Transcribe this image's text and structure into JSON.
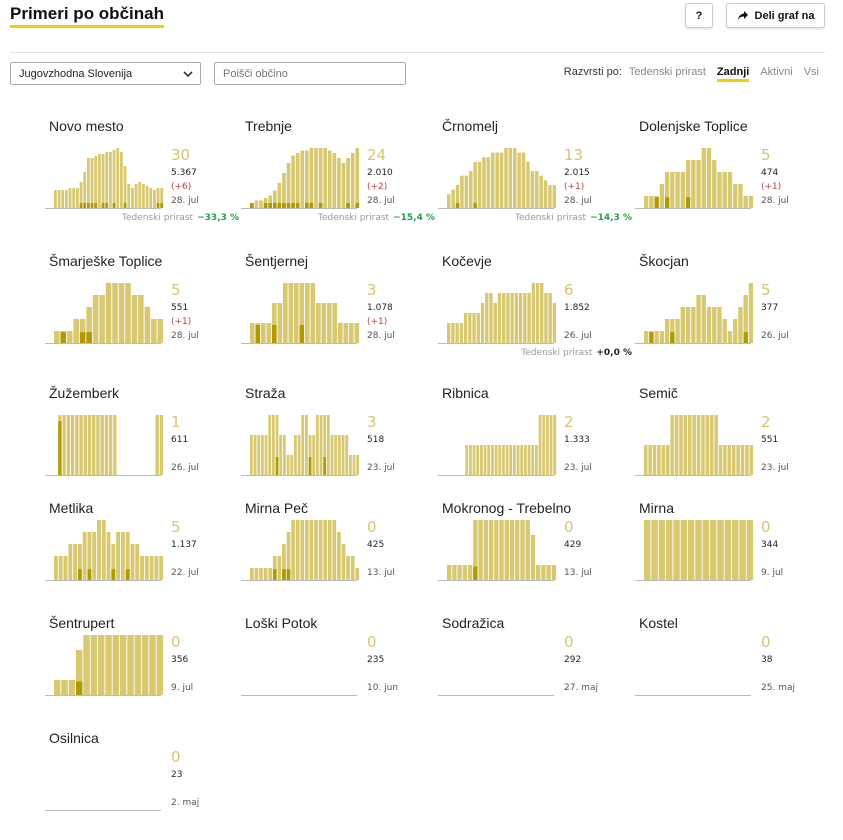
{
  "header": {
    "title": "Primeri po občinah",
    "help_label": "?",
    "share_label": "Deli graf na"
  },
  "controls": {
    "region_selected": "Jugovzhodna Slovenija",
    "search_placeholder": "Poišči občino",
    "sort_label": "Razvrsti po:",
    "sort_options": [
      "Tedenski prirast",
      "Zadnji",
      "Aktivni",
      "Vsi"
    ],
    "sort_active": "Zadnji"
  },
  "colors": {
    "bar_light": "#d8c870",
    "bar_dark": "#b09a00",
    "accent": "#f0d000",
    "big_number": "#d8c470",
    "delta": "#c04040",
    "growth_negative": "#2a9d4e",
    "growth_zero": "#222222"
  },
  "growth_label": "Tedenski prirast",
  "chart_data": [
    {
      "type": "bar",
      "name": "Novo mesto",
      "big": "30",
      "total": "5.367",
      "delta": "(+6)",
      "date": "28. jul",
      "growth": "−33,3 %",
      "active": [
        9,
        9,
        9,
        9,
        10,
        10,
        10,
        13,
        18,
        25,
        25,
        26,
        27,
        27,
        28,
        28,
        29,
        30,
        28,
        21,
        12,
        10,
        12,
        13,
        12,
        11,
        10,
        9,
        10,
        10
      ],
      "new": [
        0,
        0,
        0,
        0,
        0,
        0,
        0,
        1,
        1,
        2,
        1,
        1,
        0,
        1,
        1,
        0,
        1,
        0,
        0,
        1,
        0,
        0,
        0,
        0,
        0,
        0,
        0,
        0,
        1,
        1
      ]
    },
    {
      "type": "bar",
      "name": "Trebnje",
      "big": "24",
      "total": "2.010",
      "delta": "(+2)",
      "date": "28. jul",
      "growth": "−15,4 %",
      "active": [
        2,
        3,
        3,
        4,
        5,
        7,
        10,
        14,
        18,
        21,
        22,
        23,
        23,
        24,
        24,
        24,
        24,
        23,
        22,
        20,
        18,
        20,
        22,
        24
      ],
      "new": [
        1,
        0,
        0,
        1,
        1,
        1,
        2,
        1,
        2,
        1,
        1,
        0,
        1,
        1,
        0,
        1,
        0,
        0,
        0,
        0,
        0,
        1,
        0,
        1
      ]
    },
    {
      "type": "bar",
      "name": "Črnomelj",
      "big": "13",
      "total": "2.015",
      "delta": "(+1)",
      "date": "28. jul",
      "growth": "−14,3 %",
      "active": [
        3,
        4,
        5,
        7,
        7,
        8,
        10,
        10,
        11,
        11,
        12,
        12,
        12,
        13,
        13,
        13,
        12,
        12,
        10,
        8,
        8,
        7,
        6,
        5,
        5
      ],
      "new": [
        0,
        0,
        1,
        0,
        0,
        0,
        1,
        0,
        0,
        0,
        0,
        0,
        0,
        0,
        0,
        0,
        0,
        0,
        0,
        0,
        0,
        0,
        0,
        0,
        0
      ]
    },
    {
      "type": "bar",
      "name": "Dolenjske Toplice",
      "big": "5",
      "total": "474",
      "delta": "(+1)",
      "date": "28. jul",
      "growth": "",
      "active": [
        1,
        1,
        1,
        2,
        3,
        3,
        3,
        3,
        4,
        4,
        4,
        5,
        5,
        4,
        3,
        3,
        3,
        2,
        2,
        1,
        1
      ],
      "new": [
        0,
        0,
        1,
        0,
        1,
        0,
        0,
        0,
        1,
        0,
        0,
        0,
        0,
        0,
        0,
        0,
        0,
        0,
        0,
        0,
        0
      ]
    },
    {
      "type": "bar",
      "name": "Šmarješke Toplice",
      "big": "5",
      "total": "551",
      "delta": "(+1)",
      "date": "28. jul",
      "growth": "",
      "active": [
        1,
        1,
        1,
        2,
        2,
        3,
        4,
        4,
        5,
        5,
        5,
        5,
        4,
        4,
        3,
        2,
        2
      ],
      "new": [
        0,
        1,
        0,
        0,
        1,
        1,
        0,
        0,
        0,
        0,
        0,
        0,
        0,
        0,
        0,
        0,
        0
      ]
    },
    {
      "type": "bar",
      "name": "Šentjernej",
      "big": "3",
      "total": "1.078",
      "delta": "(+1)",
      "date": "28. jul",
      "growth": "",
      "active": [
        1,
        1,
        1,
        1,
        2,
        2,
        3,
        3,
        3,
        3,
        3,
        3,
        2,
        2,
        2,
        2,
        1,
        1,
        1,
        1
      ],
      "new": [
        0,
        1,
        0,
        0,
        1,
        0,
        0,
        0,
        0,
        1,
        0,
        0,
        0,
        0,
        0,
        0,
        0,
        0,
        0,
        0
      ]
    },
    {
      "type": "bar",
      "name": "Kočevje",
      "big": "6",
      "total": "1.852",
      "delta": "",
      "date": "26. jul",
      "growth": "+0,0 %",
      "active": [
        2,
        2,
        2,
        2,
        3,
        3,
        3,
        3,
        4,
        5,
        5,
        4,
        5,
        5,
        5,
        5,
        5,
        5,
        5,
        5,
        6,
        6,
        6,
        5,
        5,
        4
      ],
      "new": [
        0,
        0,
        0,
        0,
        0,
        0,
        0,
        0,
        0,
        0,
        0,
        0,
        0,
        0,
        0,
        0,
        0,
        0,
        0,
        0,
        0,
        0,
        0,
        0,
        0,
        0
      ]
    },
    {
      "type": "bar",
      "name": "Škocjan",
      "big": "5",
      "total": "377",
      "delta": "",
      "date": "26. jul",
      "growth": "",
      "active": [
        1,
        1,
        1,
        1,
        2,
        2,
        2,
        3,
        3,
        3,
        4,
        4,
        3,
        3,
        3,
        2,
        1,
        2,
        3,
        4,
        5
      ],
      "new": [
        0,
        1,
        0,
        0,
        0,
        1,
        0,
        0,
        0,
        0,
        0,
        0,
        0,
        0,
        0,
        0,
        0,
        0,
        0,
        1,
        0
      ]
    },
    {
      "type": "bar",
      "name": "Žužemberk",
      "big": "1",
      "total": "611",
      "delta": "",
      "date": "26. jul",
      "growth": "",
      "active": [
        0,
        1,
        1,
        1,
        1,
        1,
        1,
        1,
        1,
        1,
        1,
        1,
        1,
        1,
        1,
        0,
        0,
        0,
        0,
        0,
        0,
        0,
        0,
        0,
        1,
        1
      ],
      "new": [
        0,
        1,
        0,
        0,
        0,
        0,
        0,
        0,
        0,
        0,
        0,
        0,
        0,
        0,
        0,
        0,
        0,
        0,
        0,
        0,
        0,
        0,
        0,
        0,
        0,
        0
      ]
    },
    {
      "type": "bar",
      "name": "Straža",
      "big": "3",
      "total": "518",
      "delta": "",
      "date": "23. jul",
      "growth": "",
      "active": [
        2,
        2,
        2,
        2,
        2,
        3,
        3,
        3,
        2,
        2,
        1,
        1,
        2,
        2,
        3,
        3,
        2,
        2,
        3,
        3,
        3,
        3,
        2,
        2,
        2,
        2,
        2,
        1,
        1,
        1
      ],
      "new": [
        0,
        0,
        0,
        0,
        0,
        0,
        0,
        1,
        0,
        0,
        0,
        0,
        0,
        0,
        0,
        0,
        1,
        0,
        0,
        0,
        1,
        0,
        0,
        0,
        0,
        0,
        0,
        0,
        0,
        0
      ]
    },
    {
      "type": "bar",
      "name": "Ribnica",
      "big": "2",
      "total": "1.333",
      "delta": "",
      "date": "23. jul",
      "growth": "",
      "active": [
        0,
        0,
        0,
        0,
        0,
        1,
        1,
        1,
        1,
        1,
        1,
        1,
        1,
        1,
        1,
        1,
        1,
        1,
        1,
        1,
        1,
        1,
        1,
        1,
        1,
        2,
        2,
        2,
        2,
        2
      ],
      "new": [
        0,
        0,
        0,
        0,
        0,
        0,
        0,
        0,
        0,
        0,
        0,
        0,
        0,
        0,
        0,
        0,
        0,
        0,
        0,
        0,
        0,
        0,
        0,
        0,
        0,
        0,
        0,
        0,
        0,
        0
      ]
    },
    {
      "type": "bar",
      "name": "Semič",
      "big": "2",
      "total": "551",
      "delta": "",
      "date": "23. jul",
      "growth": "",
      "active": [
        1,
        1,
        1,
        1,
        1,
        1,
        2,
        2,
        2,
        2,
        2,
        2,
        2,
        2,
        2,
        2,
        2,
        1,
        1,
        1,
        1,
        1,
        1,
        1,
        1
      ],
      "new": [
        0,
        0,
        0,
        0,
        0,
        0,
        0,
        0,
        0,
        0,
        0,
        0,
        0,
        0,
        0,
        0,
        0,
        0,
        0,
        0,
        0,
        0,
        0,
        0,
        0
      ]
    },
    {
      "type": "bar",
      "name": "Metlika",
      "big": "5",
      "total": "1.137",
      "delta": "",
      "date": "22. jul",
      "growth": "",
      "active": [
        2,
        2,
        2,
        3,
        3,
        3,
        4,
        4,
        4,
        5,
        5,
        4,
        3,
        4,
        4,
        4,
        3,
        3,
        2,
        2,
        2,
        2,
        2
      ],
      "new": [
        0,
        0,
        0,
        0,
        0,
        1,
        0,
        1,
        0,
        0,
        0,
        0,
        1,
        0,
        0,
        1,
        0,
        0,
        0,
        0,
        0,
        0,
        0
      ]
    },
    {
      "type": "bar",
      "name": "Mirna Peč",
      "big": "0",
      "total": "425",
      "delta": "",
      "date": "13. jul",
      "growth": "",
      "active": [
        1,
        1,
        1,
        1,
        1,
        2,
        2,
        3,
        4,
        5,
        5,
        5,
        5,
        5,
        5,
        5,
        5,
        5,
        5,
        4,
        3,
        2,
        2,
        1
      ],
      "new": [
        0,
        0,
        0,
        0,
        0,
        1,
        0,
        1,
        1,
        0,
        0,
        0,
        0,
        0,
        0,
        0,
        0,
        0,
        0,
        0,
        0,
        0,
        0,
        0
      ]
    },
    {
      "type": "bar",
      "name": "Mokronog - Trebelno",
      "big": "0",
      "total": "429",
      "delta": "",
      "date": "13. jul",
      "growth": "",
      "active": [
        1,
        1,
        1,
        1,
        1,
        4,
        4,
        4,
        4,
        4,
        4,
        4,
        4,
        4,
        4,
        4,
        3,
        1,
        1,
        1,
        1
      ],
      "new": [
        0,
        0,
        0,
        0,
        0,
        1,
        0,
        0,
        0,
        0,
        0,
        0,
        0,
        0,
        0,
        0,
        0,
        0,
        0,
        0,
        0
      ]
    },
    {
      "type": "bar",
      "name": "Mirna",
      "big": "0",
      "total": "344",
      "delta": "",
      "date": "9. jul",
      "growth": "",
      "active": [
        1,
        1,
        1,
        1,
        1,
        1,
        1,
        1,
        1,
        1,
        1,
        1,
        1,
        1,
        1
      ],
      "new": [
        0,
        0,
        0,
        0,
        0,
        0,
        0,
        0,
        0,
        0,
        0,
        0,
        0,
        0,
        0
      ]
    },
    {
      "type": "bar",
      "name": "Šentrupert",
      "big": "0",
      "total": "356",
      "delta": "",
      "date": "9. jul",
      "growth": "",
      "active": [
        1,
        1,
        1,
        3,
        4,
        4,
        4,
        4,
        4,
        4,
        4,
        4,
        4,
        4,
        4
      ],
      "new": [
        0,
        0,
        0,
        1,
        0,
        0,
        0,
        0,
        0,
        0,
        0,
        0,
        0,
        0,
        0
      ]
    },
    {
      "type": "bar",
      "name": "Loški Potok",
      "big": "0",
      "total": "235",
      "delta": "",
      "date": "10. jun",
      "growth": "",
      "active": [],
      "new": []
    },
    {
      "type": "bar",
      "name": "Sodražica",
      "big": "0",
      "total": "292",
      "delta": "",
      "date": "27. maj",
      "growth": "",
      "active": [],
      "new": []
    },
    {
      "type": "bar",
      "name": "Kostel",
      "big": "0",
      "total": "38",
      "delta": "",
      "date": "25. maj",
      "growth": "",
      "active": [],
      "new": []
    },
    {
      "type": "bar",
      "name": "Osilnica",
      "big": "0",
      "total": "23",
      "delta": "",
      "date": "2. maj",
      "growth": "",
      "active": [],
      "new": []
    }
  ]
}
